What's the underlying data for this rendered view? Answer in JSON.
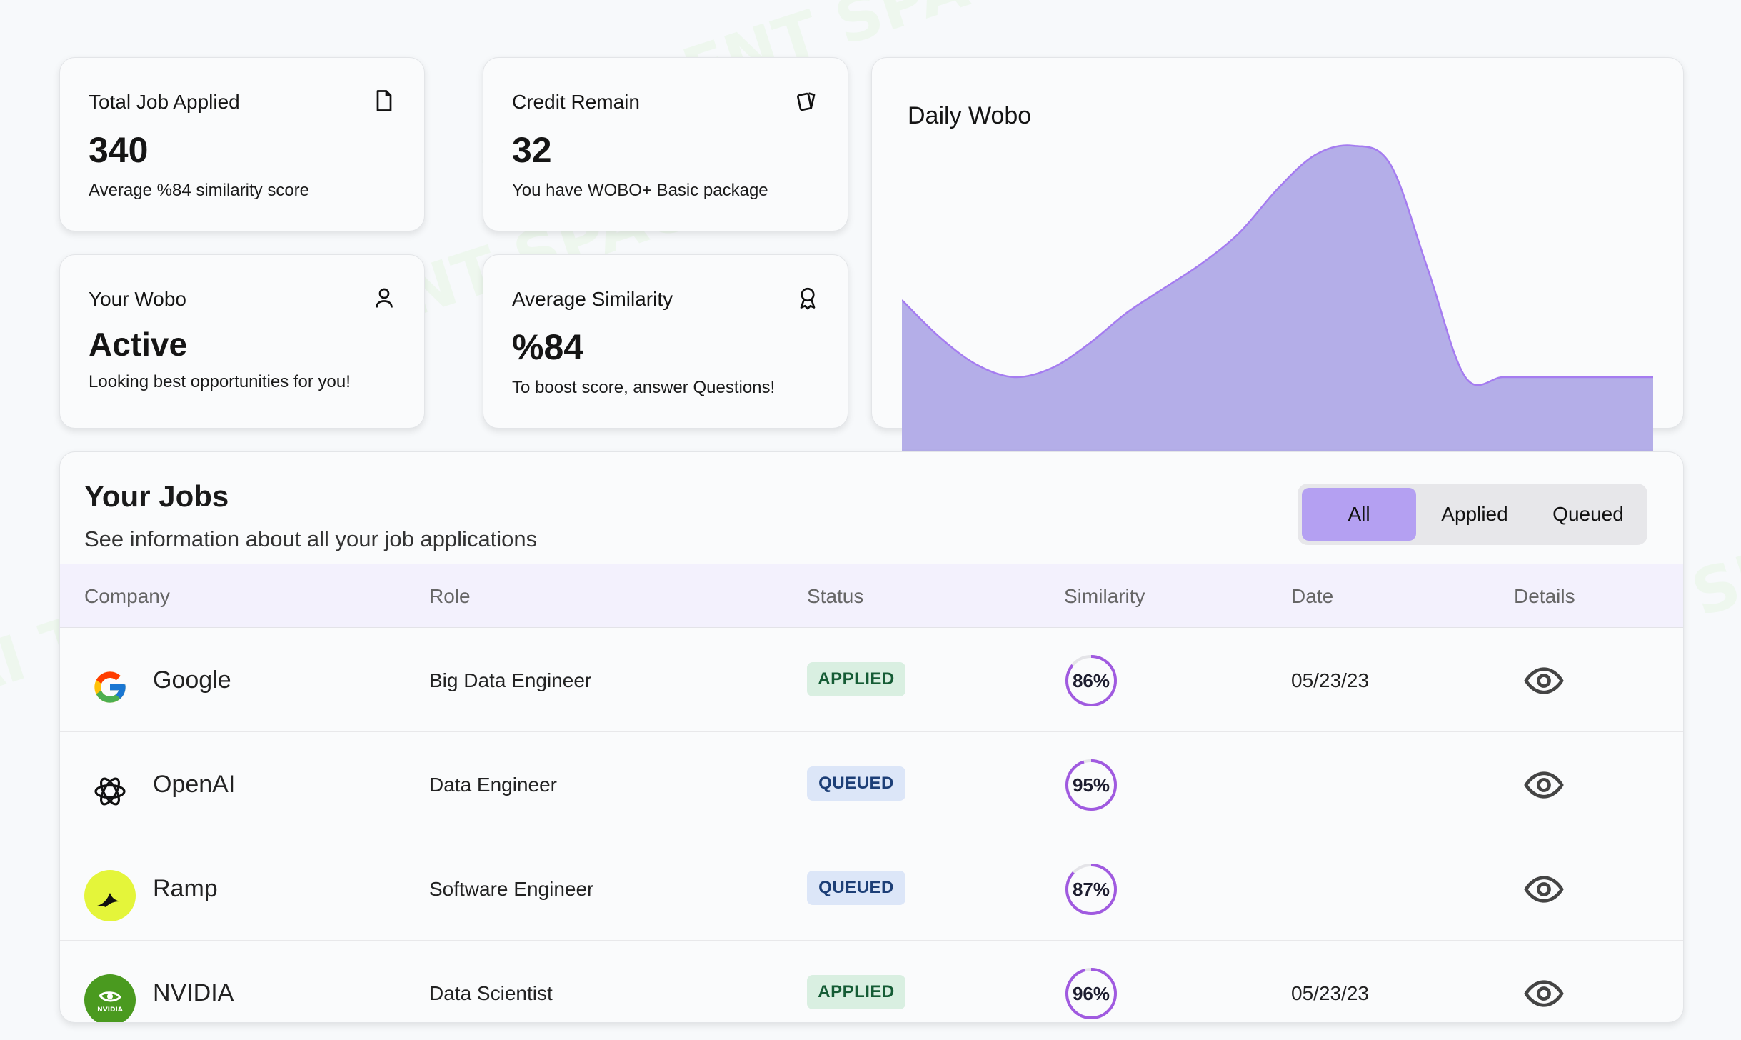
{
  "stats": {
    "total_jobs": {
      "label": "Total Job Applied",
      "value": "340",
      "sub": "Average %84 similarity score",
      "icon": "document-icon"
    },
    "credit": {
      "label": "Credit Remain",
      "value": "32",
      "sub": "You have WOBO+ Basic package",
      "icon": "cards-icon"
    },
    "wobo": {
      "label": "Your Wobo",
      "value": "Active",
      "sub": "Looking best opportunities for you!",
      "icon": "user-icon"
    },
    "similarity": {
      "label": "Average Similarity",
      "value": "%84",
      "sub": "To boost score, answer Questions!",
      "icon": "award-icon"
    }
  },
  "chart_data": {
    "type": "area",
    "title": "Daily Wobo",
    "x": [
      0,
      1,
      2,
      3,
      4,
      5,
      6,
      7,
      8,
      9,
      10,
      11,
      12,
      13,
      14,
      15,
      16,
      17,
      18,
      19,
      20
    ],
    "values": [
      50,
      38,
      29,
      25,
      28,
      36,
      46,
      54,
      62,
      72,
      86,
      97,
      100,
      94,
      60,
      25,
      25,
      25,
      25,
      25,
      25
    ],
    "ylim": [
      0,
      100
    ],
    "color": "#b4aee8",
    "stroke": "#a57cf0"
  },
  "jobs": {
    "title": "Your Jobs",
    "subtitle": "See information about all your job applications",
    "filters": [
      "All",
      "Applied",
      "Queued"
    ],
    "active_filter": "All",
    "columns": [
      "Company",
      "Role",
      "Status",
      "Similarity",
      "Date",
      "Details"
    ],
    "rows": [
      {
        "company": "Google",
        "logo": "google-logo",
        "role": "Big Data Engineer",
        "status": "APPLIED",
        "similarity": "86%",
        "similarity_value": 86,
        "date": "05/23/23"
      },
      {
        "company": "OpenAI",
        "logo": "openai-logo",
        "role": "Data Engineer",
        "status": "QUEUED",
        "similarity": "95%",
        "similarity_value": 95,
        "date": ""
      },
      {
        "company": "Ramp",
        "logo": "ramp-logo",
        "role": "Software Engineer",
        "status": "QUEUED",
        "similarity": "87%",
        "similarity_value": 87,
        "date": ""
      },
      {
        "company": "NVIDIA",
        "logo": "nvidia-logo",
        "role": "Data Scientist",
        "status": "APPLIED",
        "similarity": "96%",
        "similarity_value": 96,
        "date": "05/23/23"
      }
    ]
  },
  "colors": {
    "accent": "#b4a0f2",
    "ring": "#a05ae0",
    "applied_bg": "#d9efe1",
    "queued_bg": "#dce6f8"
  },
  "watermark_text": "AI TALENT SPACE",
  "logo_texts": {
    "nvidia": "NVIDIA"
  }
}
